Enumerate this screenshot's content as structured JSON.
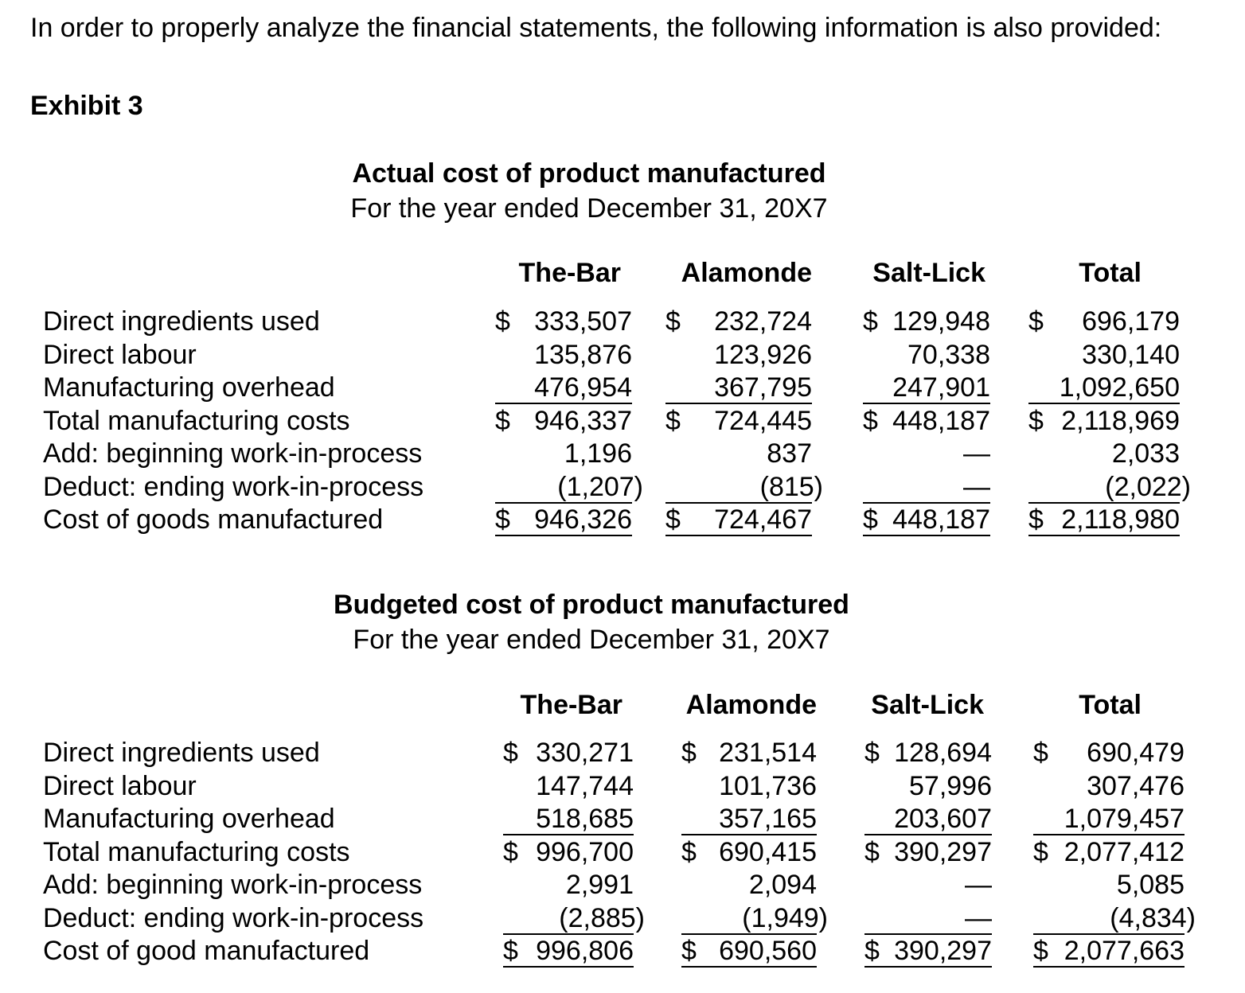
{
  "intro": "In order to properly analyze the financial statements, the following information is also provided:",
  "exhibit": "Exhibit 3",
  "columns": [
    "The-Bar",
    "Alamonde",
    "Salt-Lick",
    "Total"
  ],
  "actual": {
    "title": "Actual cost of product manufactured",
    "subtitle": "For the year ended December 31, 20X7",
    "rows": [
      {
        "label": "Direct ingredients used",
        "values": [
          "$ 333,507",
          "$ 232,724",
          "$ 129,948",
          "$ 696,179"
        ]
      },
      {
        "label": "Direct labour",
        "values": [
          "135,876",
          "123,926",
          "70,338",
          "330,140"
        ]
      },
      {
        "label": "Manufacturing overhead",
        "values": [
          "476,954",
          "367,795",
          "247,901",
          "1,092,650"
        ]
      },
      {
        "label": "Total manufacturing costs",
        "values": [
          "$ 946,337",
          "$ 724,445",
          "$ 448,187",
          "$ 2,118,969"
        ]
      },
      {
        "label": "Add: beginning work-in-process",
        "values": [
          "1,196",
          "837",
          "—",
          "2,033"
        ]
      },
      {
        "label": "Deduct: ending work-in-process",
        "values": [
          "(1,207)",
          "(815)",
          "—",
          "(2,022)"
        ]
      },
      {
        "label": "Cost of goods manufactured",
        "values": [
          "$ 946,326",
          "$ 724,467",
          "$ 448,187",
          "$ 2,118,980"
        ]
      }
    ]
  },
  "budgeted": {
    "title": "Budgeted cost of product manufactured",
    "subtitle": "For the year ended December 31, 20X7",
    "rows": [
      {
        "label": "Direct ingredients used",
        "values": [
          "$ 330,271",
          "$ 231,514",
          "$ 128,694",
          "$ 690,479"
        ]
      },
      {
        "label": "Direct labour",
        "values": [
          "147,744",
          "101,736",
          "57,996",
          "307,476"
        ]
      },
      {
        "label": "Manufacturing overhead",
        "values": [
          "518,685",
          "357,165",
          "203,607",
          "1,079,457"
        ]
      },
      {
        "label": "Total manufacturing costs",
        "values": [
          "$ 996,700",
          "$ 690,415",
          "$ 390,297",
          "$ 2,077,412"
        ]
      },
      {
        "label": "Add: beginning work-in-process",
        "values": [
          "2,991",
          "2,094",
          "—",
          "5,085"
        ]
      },
      {
        "label": "Deduct: ending work-in-process",
        "values": [
          "(2,885)",
          "(1,949)",
          "—",
          "(4,834)"
        ]
      },
      {
        "label": "Cost of good manufactured",
        "values": [
          "$ 996,806",
          "$ 690,560",
          "$ 390,297",
          "$ 2,077,663"
        ]
      }
    ]
  }
}
